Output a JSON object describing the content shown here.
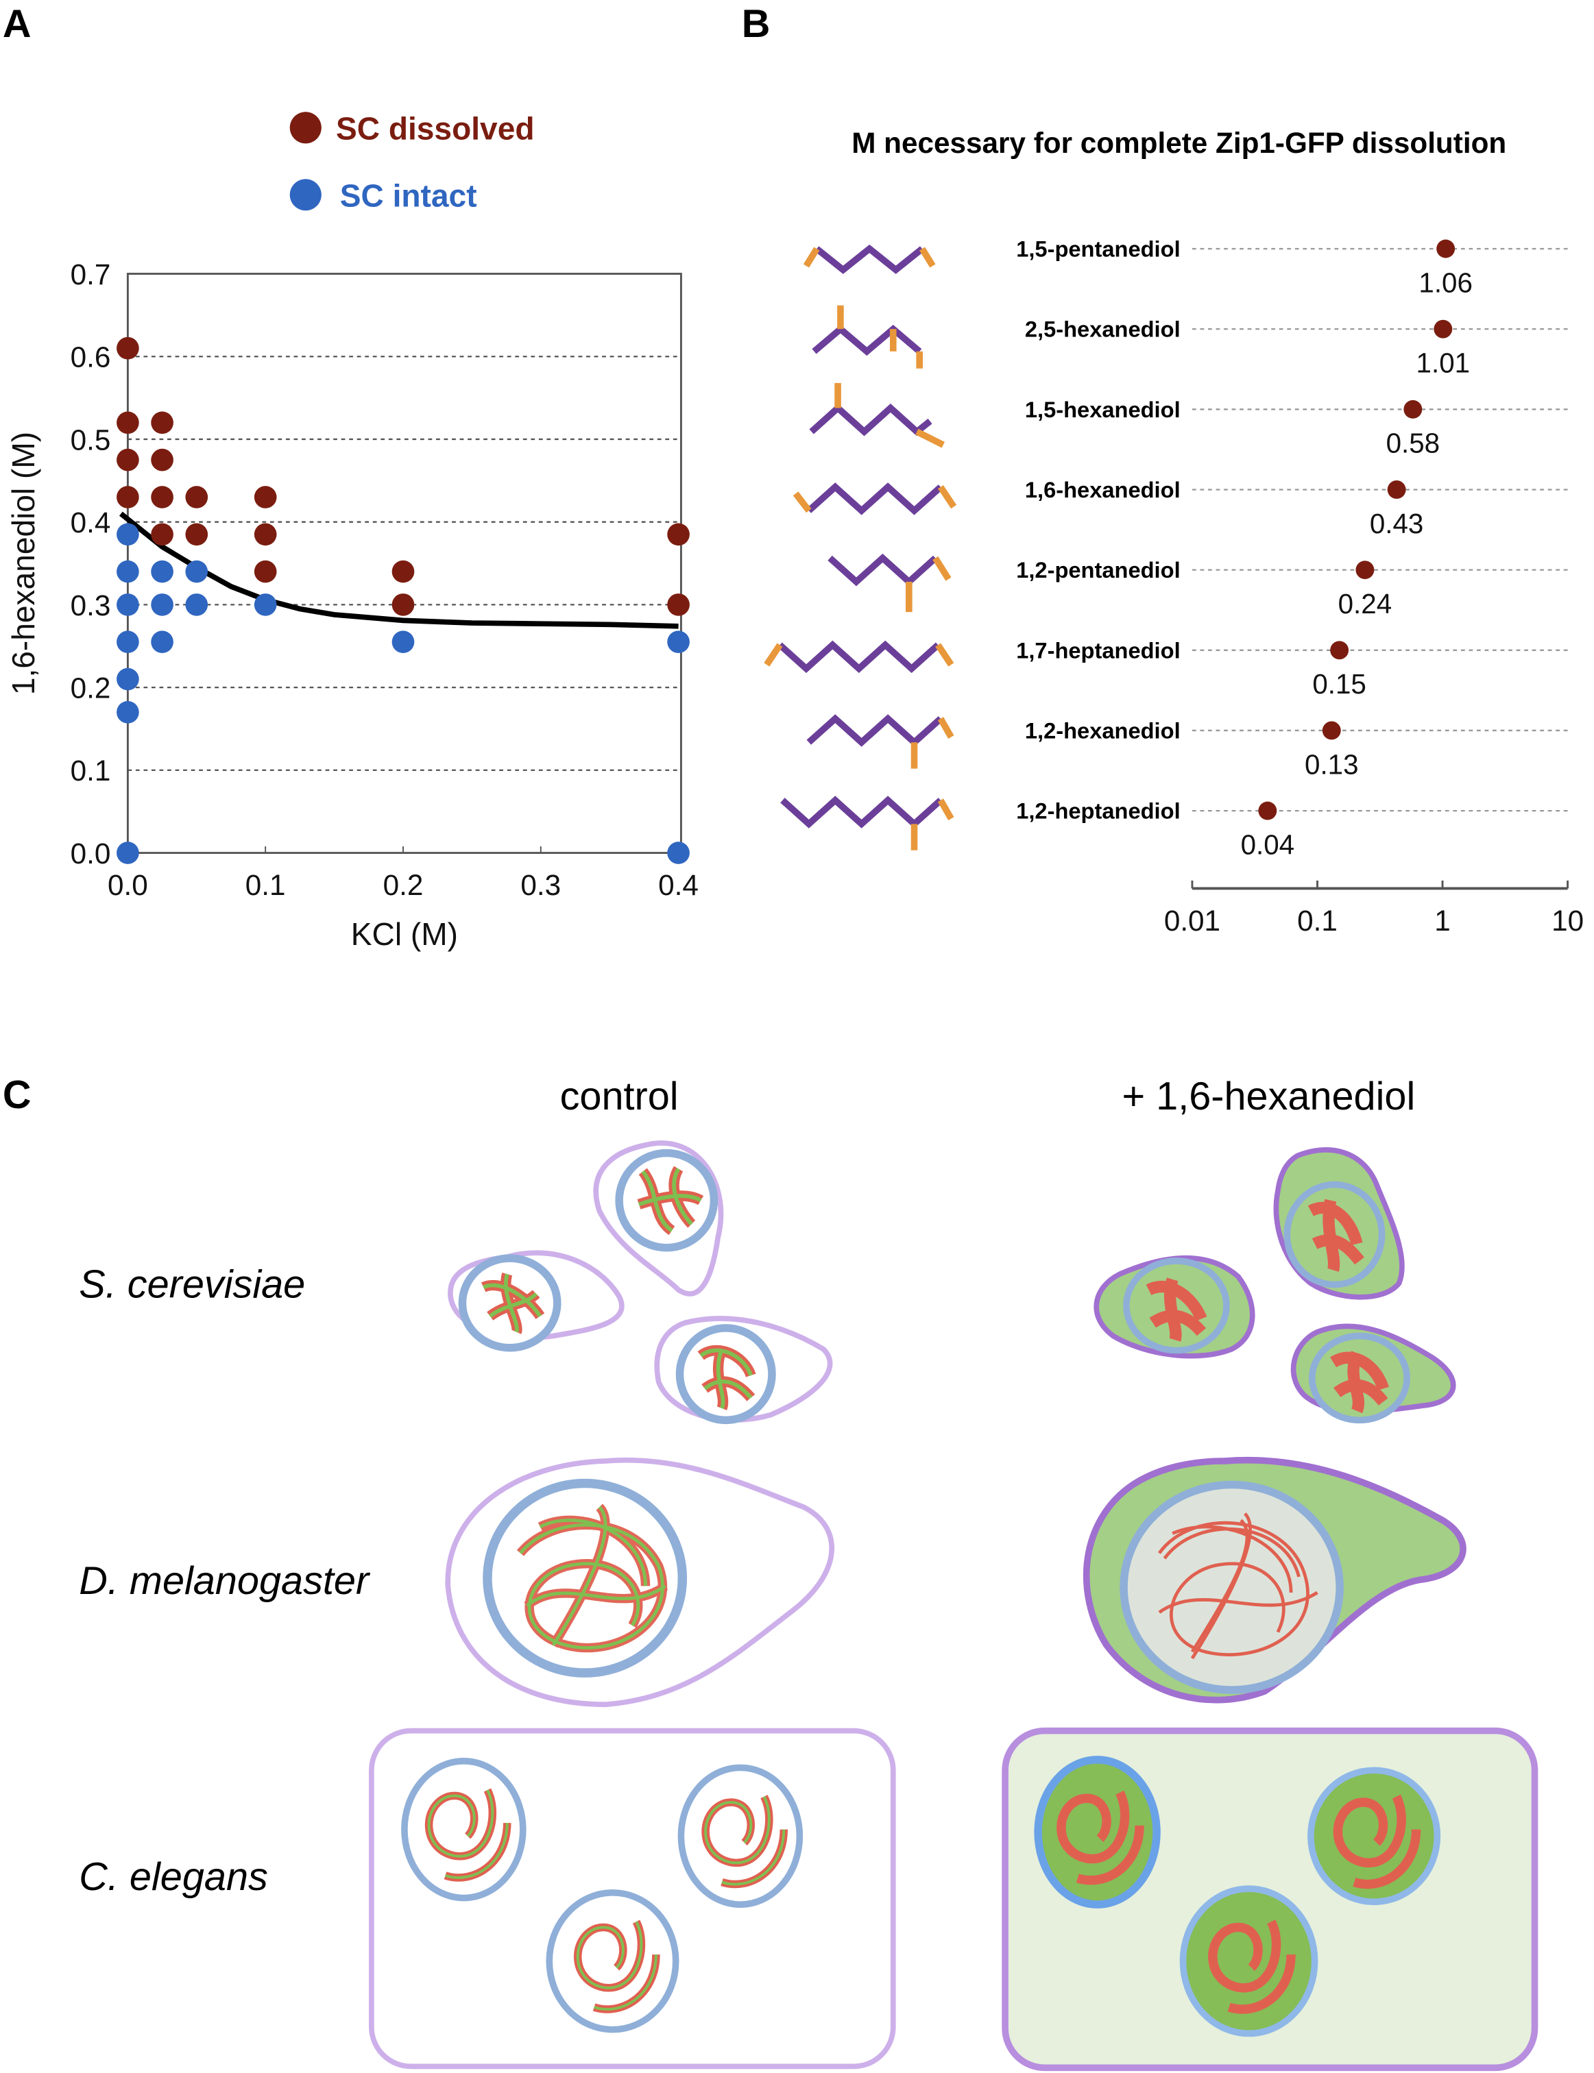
{
  "panels": {
    "a": "A",
    "b": "B",
    "c": "C"
  },
  "colors": {
    "dissolved": "#7a1d10",
    "intact": "#2f66c0",
    "curve": "#000000",
    "chain": "#6b3f99",
    "hydroxyl": "#e8973a",
    "membrane": "#c9a6e6",
    "nuclear_envelope": "#8fafd8",
    "zip1_green": "#7fbf50",
    "axis_red": "#e06050",
    "cyto_green": "#a4cf87",
    "tissue_green": "#e6f0dd",
    "nucleoplasm_gray": "#dde3da"
  },
  "chart_data": [
    {
      "type": "scatter",
      "panel": "A",
      "title": "",
      "xlabel": "KCl (M)",
      "ylabel": "1,6-hexanediol (M)",
      "xlim": [
        0.0,
        0.4
      ],
      "ylim": [
        0.0,
        0.7
      ],
      "xticks": [
        "0.0",
        "0.1",
        "0.2",
        "0.3",
        "0.4"
      ],
      "yticks": [
        "0.0",
        "0.1",
        "0.2",
        "0.3",
        "0.4",
        "0.5",
        "0.6",
        "0.7"
      ],
      "grid": "horizontal dashed",
      "legend": {
        "placement": "top",
        "entries": [
          {
            "name": "SC dissolved",
            "color_key": "dissolved"
          },
          {
            "name": "SC intact",
            "color_key": "intact"
          }
        ]
      },
      "series": [
        {
          "name": "SC dissolved",
          "points": [
            [
              0.0,
              0.61
            ],
            [
              0.0,
              0.52
            ],
            [
              0.0,
              0.475
            ],
            [
              0.0,
              0.43
            ],
            [
              0.025,
              0.52
            ],
            [
              0.025,
              0.475
            ],
            [
              0.025,
              0.43
            ],
            [
              0.025,
              0.385
            ],
            [
              0.05,
              0.43
            ],
            [
              0.05,
              0.385
            ],
            [
              0.1,
              0.43
            ],
            [
              0.1,
              0.385
            ],
            [
              0.1,
              0.34
            ],
            [
              0.2,
              0.34
            ],
            [
              0.2,
              0.3
            ],
            [
              0.4,
              0.385
            ],
            [
              0.4,
              0.3
            ]
          ]
        },
        {
          "name": "SC intact",
          "points": [
            [
              0.0,
              0.385
            ],
            [
              0.0,
              0.34
            ],
            [
              0.0,
              0.3
            ],
            [
              0.0,
              0.255
            ],
            [
              0.0,
              0.21
            ],
            [
              0.0,
              0.17
            ],
            [
              0.0,
              0.0
            ],
            [
              0.025,
              0.34
            ],
            [
              0.025,
              0.3
            ],
            [
              0.025,
              0.255
            ],
            [
              0.05,
              0.34
            ],
            [
              0.05,
              0.3
            ],
            [
              0.1,
              0.3
            ],
            [
              0.2,
              0.255
            ],
            [
              0.4,
              0.255
            ],
            [
              0.4,
              0.0
            ]
          ]
        },
        {
          "name": "boundary fit",
          "type": "line",
          "points": [
            [
              -0.005,
              0.41
            ],
            [
              0.025,
              0.37
            ],
            [
              0.05,
              0.345
            ],
            [
              0.075,
              0.322
            ],
            [
              0.1,
              0.306
            ],
            [
              0.125,
              0.295
            ],
            [
              0.15,
              0.288
            ],
            [
              0.2,
              0.281
            ],
            [
              0.25,
              0.278
            ],
            [
              0.3,
              0.277
            ],
            [
              0.35,
              0.276
            ],
            [
              0.4,
              0.274
            ]
          ]
        }
      ]
    },
    {
      "type": "scatter",
      "panel": "B",
      "title": "M necessary for complete Zip1-GFP dissolution",
      "xscale": "log",
      "xlim": [
        0.01,
        10
      ],
      "xticks": [
        "0.01",
        "0.1",
        "1",
        "10"
      ],
      "xlabel": "",
      "ylabel": "",
      "grid": "horizontal dashed",
      "categories": [
        "1,5-pentanediol",
        "2,5-hexanediol",
        "1,5-hexanediol",
        "1,6-hexanediol",
        "1,2-pentanediol",
        "1,7-heptanediol",
        "1,2-hexanediol",
        "1,2-heptanediol"
      ],
      "values": [
        1.06,
        1.01,
        0.58,
        0.43,
        0.24,
        0.15,
        0.13,
        0.04
      ],
      "value_labels": [
        "1.06",
        "1.01",
        "0.58",
        "0.43",
        "0.24",
        "0.15",
        "0.13",
        "0.04"
      ],
      "structure_icons": [
        "1,5-pentanediol-structure",
        "2,5-hexanediol-structure",
        "1,5-hexanediol-structure",
        "1,6-hexanediol-structure",
        "1,2-pentanediol-structure",
        "1,7-heptanediol-structure",
        "1,2-hexanediol-structure",
        "1,2-heptanediol-structure"
      ]
    }
  ],
  "panel_c": {
    "columns": [
      "control",
      "+ 1,6-hexanediol"
    ],
    "rows": [
      "S. cerevisiae",
      "D. melanogaster",
      "C. elegans"
    ]
  }
}
